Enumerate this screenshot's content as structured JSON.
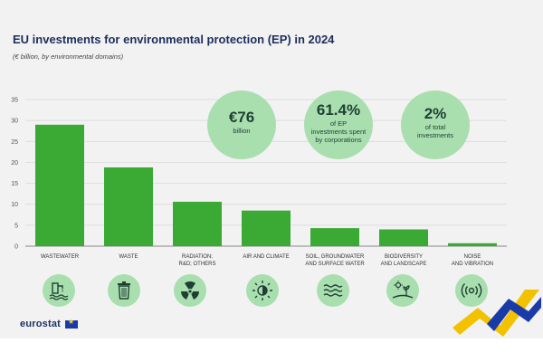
{
  "header": {
    "title": "EU investments for environmental protection (EP) in 2024",
    "subtitle": "(€ billion, by environmental domains)"
  },
  "stats": [
    {
      "big": "€76",
      "small": "billion"
    },
    {
      "big": "61.4%",
      "small_lines": [
        "of EP",
        "investments spent",
        "by corporations"
      ]
    },
    {
      "big": "2%",
      "small_lines": [
        "of total",
        "investments"
      ]
    }
  ],
  "chart_data": {
    "type": "bar",
    "title": "EU investments for environmental protection (EP) in 2024",
    "ylabel": "€ billion",
    "ylim": [
      0,
      35
    ],
    "yticks": [
      0,
      5,
      10,
      15,
      20,
      25,
      30,
      35
    ],
    "grid": true,
    "color": "#3aaa35",
    "categories": [
      [
        "WASTEWATER"
      ],
      [
        "WASTE"
      ],
      [
        "RADIATION;",
        "R&D; OTHERS"
      ],
      [
        "AIR AND CLIMATE"
      ],
      [
        "SOIL, GROUNDWATER",
        "AND SURFACE WATER"
      ],
      [
        "BIODIVERSITY",
        "AND LANDSCAPE"
      ],
      [
        "NOISE",
        "AND VIBRATION"
      ]
    ],
    "values": [
      29.0,
      18.8,
      10.6,
      8.5,
      4.3,
      4.0,
      0.7
    ]
  },
  "icons": [
    "wastewater-icon",
    "waste-bin-icon",
    "radiation-icon",
    "air-climate-icon",
    "water-waves-icon",
    "biodiversity-icon",
    "noise-icon"
  ],
  "footer": {
    "logo": "eurostat"
  }
}
